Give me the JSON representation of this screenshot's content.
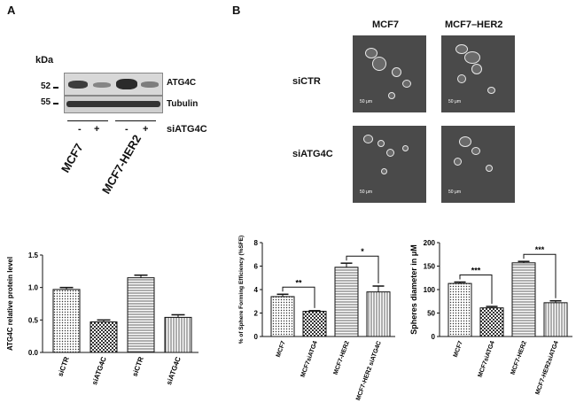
{
  "panel_a": {
    "letter": "A",
    "kda_label": "kDa",
    "mw_markers": [
      "52",
      "55"
    ],
    "proteins": [
      "ATG4C",
      "Tubulin"
    ],
    "treatment_signs": [
      "-",
      "+",
      "-",
      "+"
    ],
    "treatment_label": "siATG4C",
    "cell_lines": [
      "MCF7",
      "MCF7-HER2"
    ]
  },
  "panel_b": {
    "letter": "B",
    "column_headers": [
      "MCF7",
      "MCF7–HER2"
    ],
    "row_labels": [
      "siCTR",
      "siATG4C"
    ],
    "scale_bar": "50 μm"
  },
  "chart_data": [
    {
      "type": "bar",
      "categories": [
        "siCTR",
        "siATG4C",
        "siCTR",
        "siATG4C"
      ],
      "values": [
        0.97,
        0.47,
        1.15,
        0.54
      ],
      "errors": [
        0.03,
        0.03,
        0.04,
        0.04
      ],
      "ylabel": "ATG4C relative protein level",
      "ylim": [
        0,
        1.5
      ],
      "yticks": [
        "0.0",
        "0.5",
        "1.0",
        "1.5"
      ]
    },
    {
      "type": "bar",
      "categories": [
        "MCF7",
        "MCF7siATG4",
        "MCF7-HER2",
        "MCF7-HER2 siATG4C"
      ],
      "values": [
        3.4,
        2.15,
        5.9,
        3.8
      ],
      "errors": [
        0.2,
        0.05,
        0.35,
        0.5
      ],
      "ylabel": "% of Sphere Forming Efficiency (%SFE)",
      "ylim": [
        0,
        8
      ],
      "yticks": [
        "0",
        "2",
        "4",
        "6",
        "8"
      ],
      "significance": [
        "**",
        "*"
      ]
    },
    {
      "type": "bar",
      "categories": [
        "MCF7",
        "MCF7siATG4",
        "MCF7-HER2",
        "MCF7-HER2siATG4"
      ],
      "values": [
        113,
        61,
        157,
        72
      ],
      "errors": [
        3,
        3,
        3,
        4
      ],
      "ylabel": "Spheres diameter in μM",
      "ylim": [
        0,
        200
      ],
      "yticks": [
        "0",
        "50",
        "100",
        "150",
        "200"
      ],
      "significance": [
        "***",
        "***"
      ]
    }
  ]
}
